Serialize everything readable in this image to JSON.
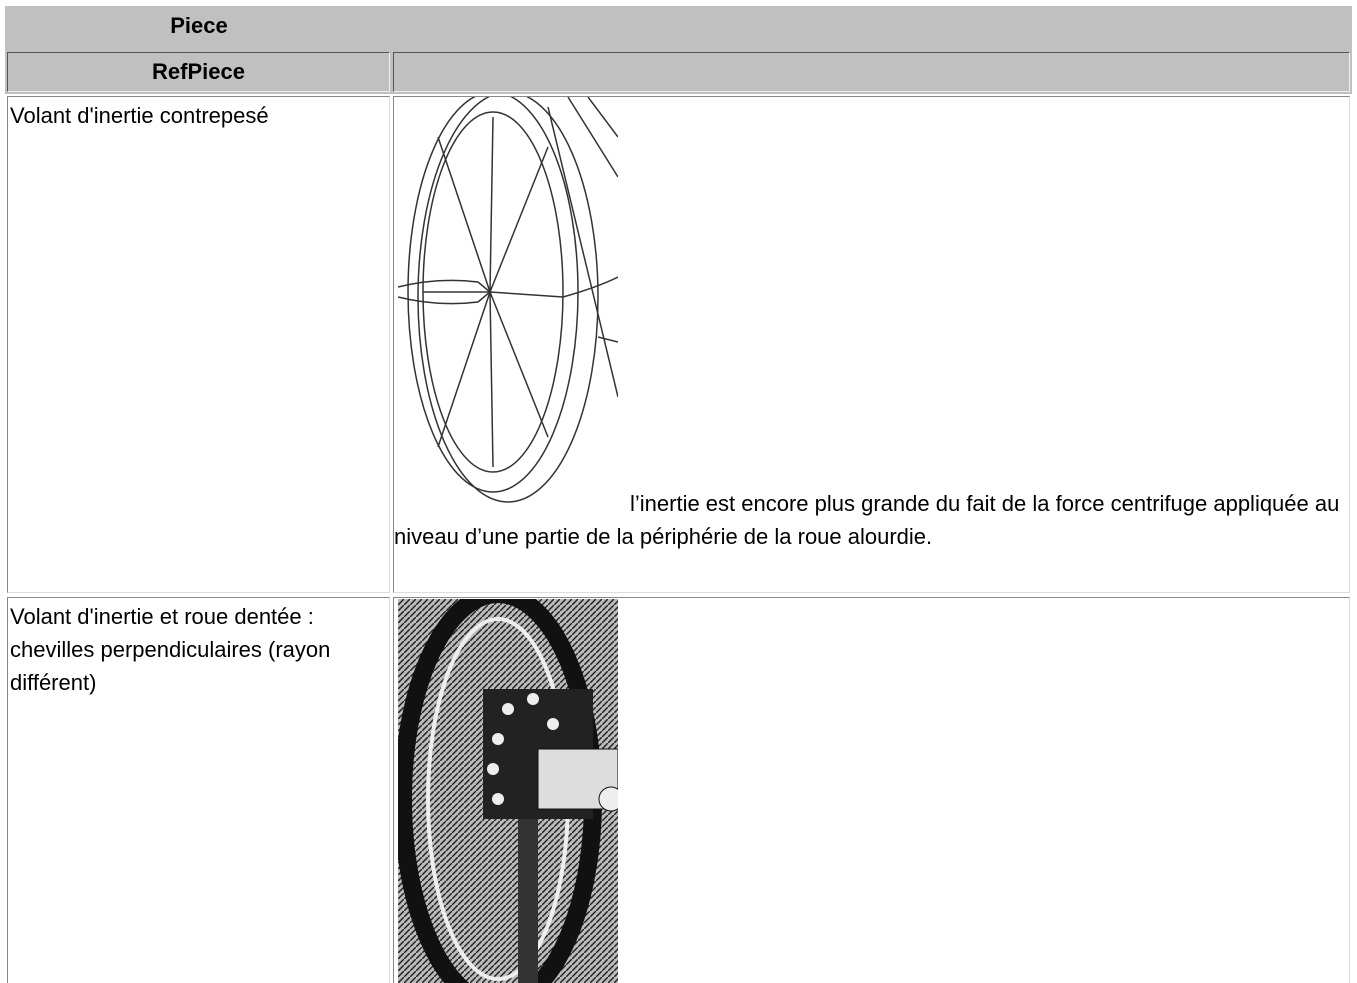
{
  "table": {
    "caption": "Piece",
    "header": [
      "RefPiece"
    ],
    "rows": [
      [
        "Volant d'inertie contrepesé",
        "l’inertie est encore plus grande du fait de la force centrifuge appliquée au niveau d’une partie de la périphérie de la roue alourdie."
      ],
      [
        "Volant d'inertie et roue dentée : chevilles perpendiculaires (rayon différent)"
      ]
    ]
  }
}
